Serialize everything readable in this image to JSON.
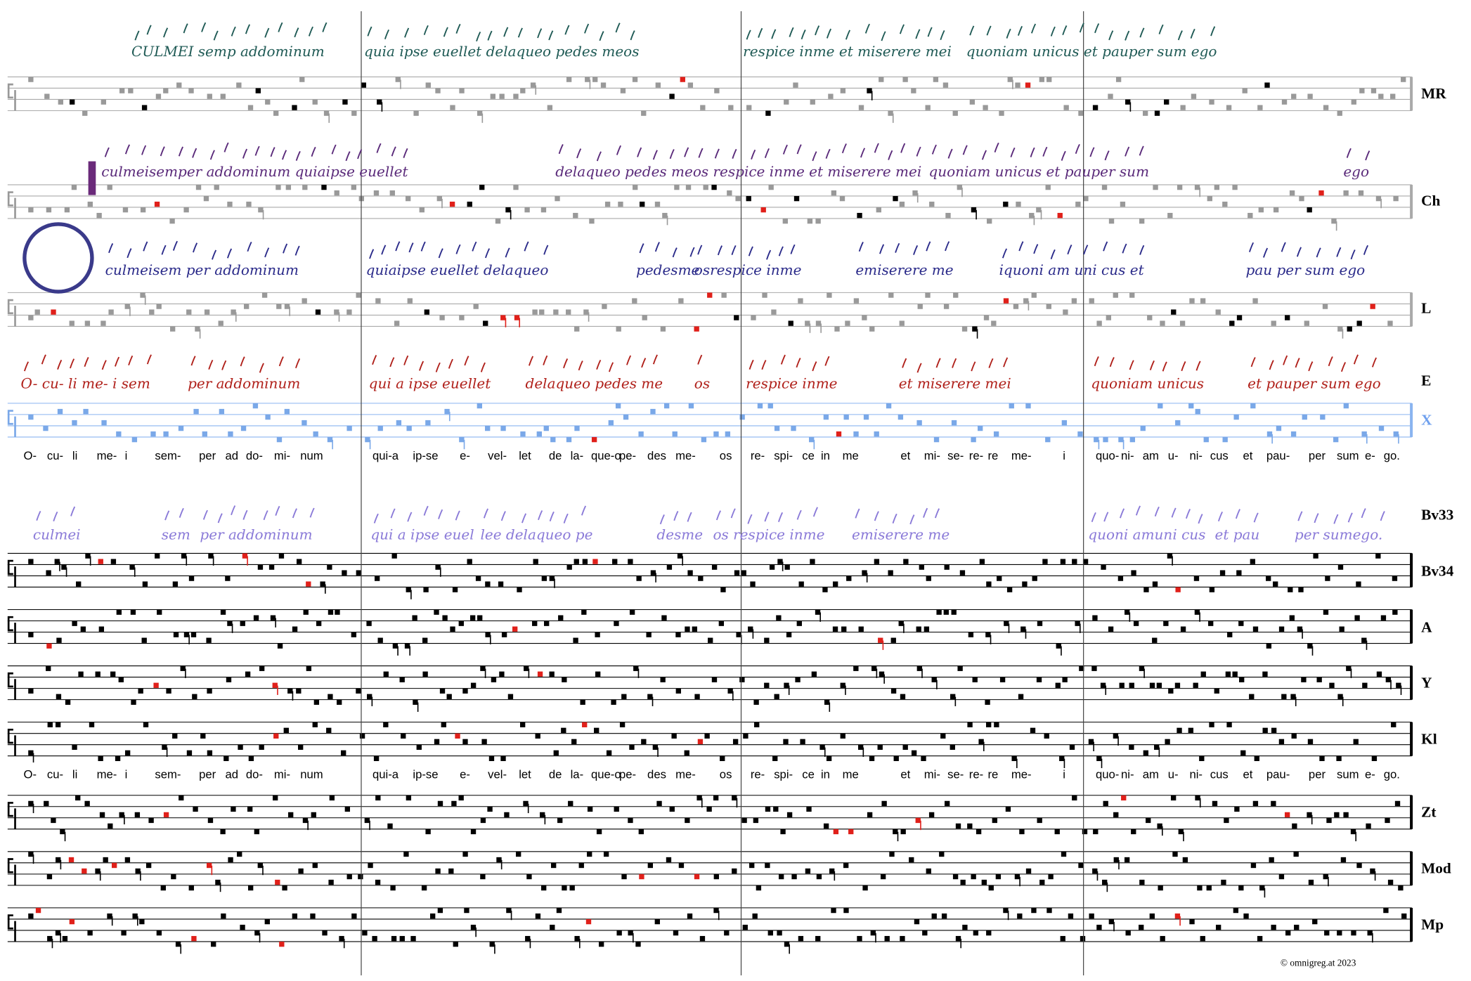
{
  "labels": [
    "MR",
    "Ch",
    "L",
    "E",
    "X",
    "Bv33",
    "Bv34",
    "A",
    "Y",
    "Kl",
    "Zt",
    "Mod",
    "Mp"
  ],
  "lyrics": [
    "O-",
    "cu-",
    "li",
    "me-",
    "i",
    "sem-",
    "per",
    "ad",
    "do-",
    "mi-",
    "num",
    "qui-a",
    "ip-se",
    "e-",
    "vel-",
    "let",
    "de",
    "la-",
    "que-o",
    "pe-",
    "des",
    "me-",
    "os",
    "re-",
    "spi-",
    "ce",
    "in",
    "me",
    "et",
    "mi-",
    "se-",
    "re-",
    "re",
    "me-",
    "i",
    "quo-",
    "ni-",
    "am",
    "u-",
    "ni-",
    "cus",
    "et",
    "pau-",
    "per",
    "sum",
    "e-",
    "go."
  ],
  "manuscripts": {
    "MR": [
      "CULMEI semp addominum",
      "quia ipse euellet delaqueo pedes meos",
      "respice inme et miserere mei",
      "quoniam unicus et pauper sum ego"
    ],
    "Ch": [
      "culmeisemper addominum quiaipse euellet",
      "delaqueo pedes meos respice inme et miserere mei",
      "quoniam unicus et pauper sum",
      "ego"
    ],
    "L": [
      "culmeisem per addominum",
      "quiaipse euellet delaqueo",
      "pedesme",
      "osrespice inme",
      "emiserere me",
      "iquoni am uni cus et",
      "pau per sum ego"
    ],
    "E": [
      "O- cu- li me- i sem",
      "per addominum",
      "qui a ipse euellet",
      "delaqueo pedes me",
      "os",
      "respice inme",
      "et miserere mei",
      "quoniam unicus",
      "et pauper sum ego"
    ],
    "Bv33": [
      "culmei",
      "sem",
      "per addominum",
      "qui a ipse euel",
      "lee delaqueo pe",
      "desme",
      "os respice inme",
      "emiserere me",
      "quoni amuni cus",
      "et pau",
      "per sumego."
    ]
  },
  "copyright": "© omnigreg.at   2023"
}
